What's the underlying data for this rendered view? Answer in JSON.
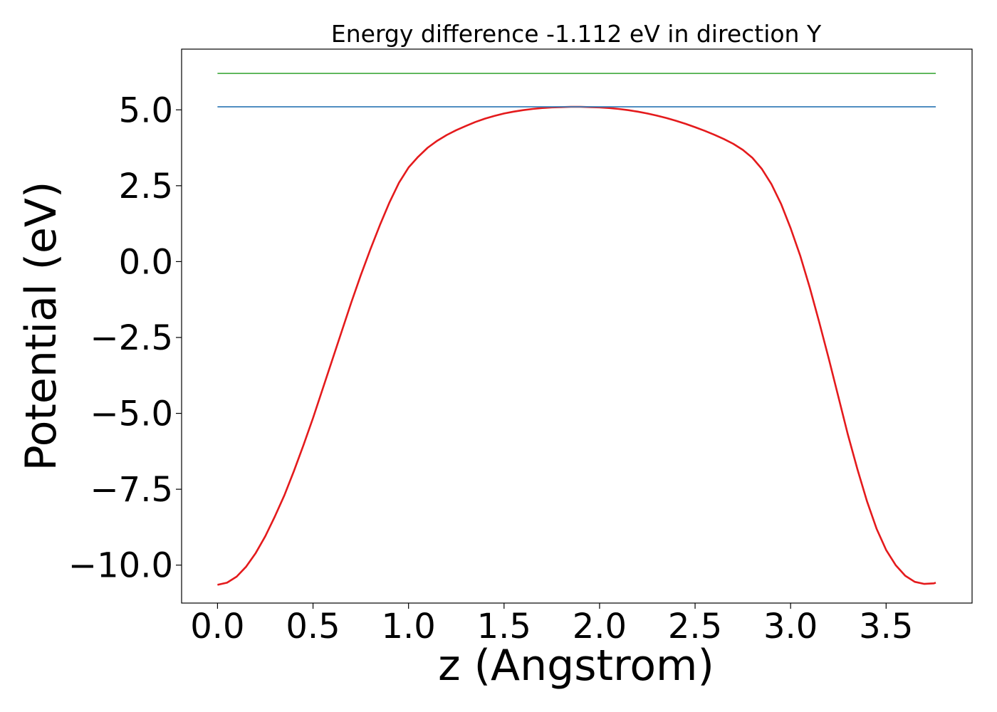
{
  "chart_data": {
    "type": "line",
    "title": "Energy difference -1.112 eV in direction Y",
    "xlabel": "z (Angstrom)",
    "ylabel": "Potential (eV)",
    "xlim": [
      -0.188,
      3.95
    ],
    "ylim": [
      -11.25,
      7.0
    ],
    "xticks": [
      0.0,
      0.5,
      1.0,
      1.5,
      2.0,
      2.5,
      3.0,
      3.5
    ],
    "xtick_labels": [
      "0.0",
      "0.5",
      "1.0",
      "1.5",
      "2.0",
      "2.5",
      "3.0",
      "3.5"
    ],
    "yticks": [
      5.0,
      2.5,
      0.0,
      -2.5,
      -5.0,
      -7.5,
      -10.0
    ],
    "ytick_labels": [
      "5.0",
      "2.5",
      "0.0",
      "−2.5",
      "−5.0",
      "−7.5",
      "−10.0"
    ],
    "grid": false,
    "series": [
      {
        "color": "#e41a1c",
        "x": [
          0.0,
          0.05,
          0.1,
          0.15,
          0.2,
          0.25,
          0.3,
          0.35,
          0.4,
          0.45,
          0.5,
          0.55,
          0.6,
          0.65,
          0.7,
          0.75,
          0.8,
          0.85,
          0.9,
          0.95,
          1.0,
          1.05,
          1.1,
          1.15,
          1.2,
          1.25,
          1.3,
          1.35,
          1.4,
          1.45,
          1.5,
          1.55,
          1.6,
          1.65,
          1.7,
          1.75,
          1.8,
          1.85,
          1.9,
          1.95,
          2.0,
          2.05,
          2.1,
          2.15,
          2.2,
          2.25,
          2.3,
          2.35,
          2.4,
          2.45,
          2.5,
          2.55,
          2.6,
          2.65,
          2.7,
          2.75,
          2.8,
          2.85,
          2.9,
          2.95,
          3.0,
          3.05,
          3.1,
          3.15,
          3.2,
          3.25,
          3.3,
          3.35,
          3.4,
          3.45,
          3.5,
          3.55,
          3.6,
          3.65,
          3.7,
          3.75,
          3.76
        ],
        "y": [
          -10.65,
          -10.58,
          -10.38,
          -10.05,
          -9.6,
          -9.05,
          -8.4,
          -7.7,
          -6.9,
          -6.05,
          -5.15,
          -4.2,
          -3.25,
          -2.3,
          -1.35,
          -0.45,
          0.4,
          1.2,
          1.95,
          2.6,
          3.1,
          3.45,
          3.75,
          3.98,
          4.17,
          4.33,
          4.47,
          4.6,
          4.71,
          4.8,
          4.88,
          4.94,
          4.99,
          5.03,
          5.06,
          5.08,
          5.09,
          5.1,
          5.1,
          5.09,
          5.08,
          5.06,
          5.03,
          4.99,
          4.94,
          4.88,
          4.81,
          4.73,
          4.64,
          4.54,
          4.43,
          4.31,
          4.18,
          4.04,
          3.88,
          3.68,
          3.42,
          3.05,
          2.55,
          1.9,
          1.1,
          0.2,
          -0.85,
          -2.0,
          -3.2,
          -4.45,
          -5.7,
          -6.85,
          -7.9,
          -8.8,
          -9.5,
          -10.0,
          -10.35,
          -10.55,
          -10.62,
          -10.6,
          -10.58
        ]
      },
      {
        "color": "#377eb8",
        "x": [
          0.0,
          3.76
        ],
        "y": [
          5.1,
          5.1
        ]
      },
      {
        "color": "#4daf4a",
        "x": [
          0.0,
          3.76
        ],
        "y": [
          6.2,
          6.2
        ]
      }
    ]
  }
}
